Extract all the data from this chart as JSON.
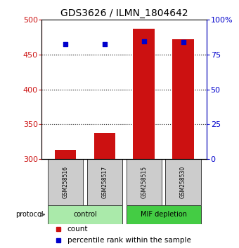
{
  "title": "GDS3626 / ILMN_1804642",
  "samples": [
    "GSM258516",
    "GSM258517",
    "GSM258515",
    "GSM258530"
  ],
  "counts": [
    313,
    337,
    487,
    472
  ],
  "percentiles_pct": [
    82.5,
    82.5,
    84.5,
    84.0
  ],
  "ylim_left": [
    300,
    500
  ],
  "ylim_right": [
    0,
    100
  ],
  "yticks_left": [
    300,
    350,
    400,
    450,
    500
  ],
  "yticks_right": [
    0,
    25,
    50,
    75,
    100
  ],
  "bar_color": "#cc1111",
  "marker_color": "#0000cc",
  "bar_width": 0.55,
  "group_control_color": "#aaeaaa",
  "group_mif_color": "#44cc44",
  "label_count": "count",
  "label_percentile": "percentile rank within the sample",
  "protocol_label": "protocol",
  "gridline_y": [
    350,
    400,
    450
  ],
  "x_positions": [
    0,
    1,
    2,
    3
  ]
}
